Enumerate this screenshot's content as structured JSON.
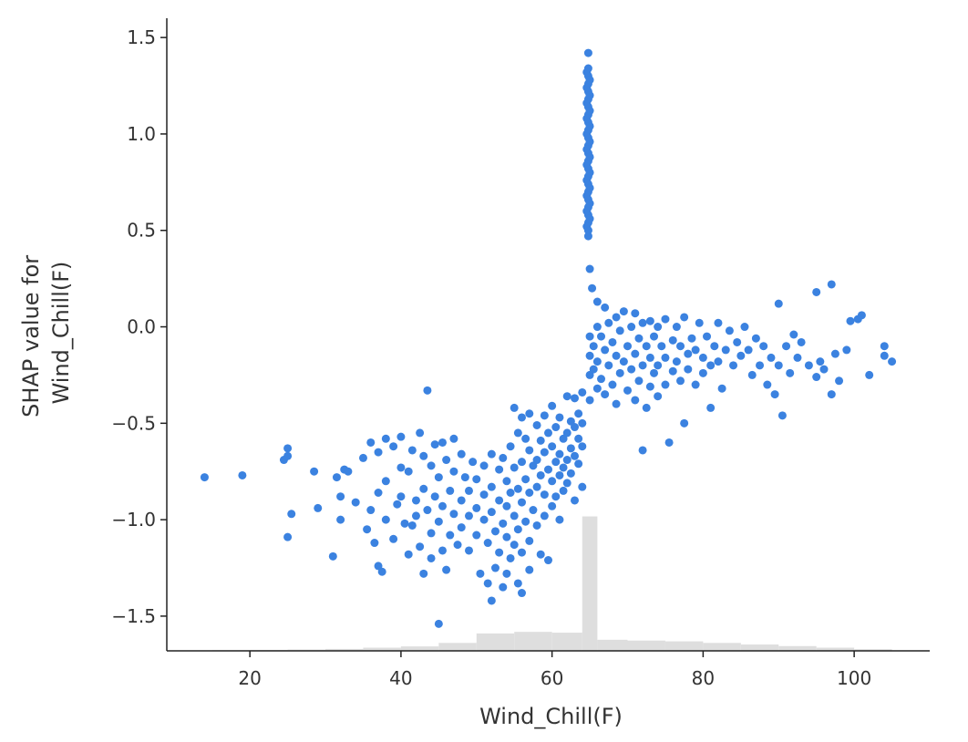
{
  "chart_data": {
    "type": "scatter",
    "xlabel": "Wind_Chill(F)",
    "ylabel": [
      "SHAP value for",
      "Wind_Chill(F)"
    ],
    "xlim": [
      9,
      110
    ],
    "ylim": [
      -1.68,
      1.6
    ],
    "xticks": [
      20,
      40,
      60,
      80,
      100
    ],
    "xtick_labels": [
      "20",
      "40",
      "60",
      "80",
      "100"
    ],
    "yticks": [
      1.5,
      1.0,
      0.5,
      0.0,
      -0.5,
      -1.0,
      -1.5
    ],
    "ytick_labels": [
      "1.5",
      "1.0",
      "0.5",
      "0.0",
      "−0.5",
      "−1.0",
      "−1.5"
    ],
    "grid": false,
    "legend": "none",
    "colors": {
      "points": "#3b82e0",
      "histogram": "#dedede",
      "axes": "#222222"
    },
    "histogram": {
      "bin_edges": [
        10,
        15,
        20,
        25,
        30,
        35,
        40,
        45,
        50,
        55,
        60,
        64,
        66,
        70,
        75,
        80,
        85,
        90,
        95,
        100,
        105
      ],
      "heights": [
        0.002,
        0.004,
        0.006,
        0.008,
        0.012,
        0.02,
        0.028,
        0.05,
        0.11,
        0.12,
        0.115,
        0.85,
        0.07,
        0.065,
        0.06,
        0.05,
        0.04,
        0.03,
        0.02,
        0.01
      ]
    },
    "points": [
      [
        14,
        -0.78
      ],
      [
        19,
        -0.77
      ],
      [
        24.5,
        -0.69
      ],
      [
        25,
        -0.63
      ],
      [
        25,
        -0.67
      ],
      [
        25,
        -1.09
      ],
      [
        25.5,
        -0.97
      ],
      [
        28.5,
        -0.75
      ],
      [
        29,
        -0.94
      ],
      [
        31,
        -1.19
      ],
      [
        31.5,
        -0.78
      ],
      [
        32,
        -0.88
      ],
      [
        32,
        -1.0
      ],
      [
        32.5,
        -0.74
      ],
      [
        33,
        -0.75
      ],
      [
        34,
        -0.91
      ],
      [
        35,
        -0.68
      ],
      [
        35.5,
        -1.05
      ],
      [
        36,
        -0.6
      ],
      [
        36,
        -0.95
      ],
      [
        36.5,
        -1.12
      ],
      [
        37,
        -0.65
      ],
      [
        37,
        -1.24
      ],
      [
        37,
        -0.86
      ],
      [
        37.5,
        -1.27
      ],
      [
        38,
        -0.58
      ],
      [
        38,
        -0.8
      ],
      [
        38,
        -1.0
      ],
      [
        39,
        -0.62
      ],
      [
        39,
        -1.1
      ],
      [
        39.5,
        -0.92
      ],
      [
        40,
        -0.57
      ],
      [
        40,
        -0.73
      ],
      [
        40,
        -0.88
      ],
      [
        40.5,
        -1.02
      ],
      [
        41,
        -0.75
      ],
      [
        41,
        -1.18
      ],
      [
        41.5,
        -0.64
      ],
      [
        41.5,
        -1.03
      ],
      [
        42,
        -0.9
      ],
      [
        42,
        -0.98
      ],
      [
        42.5,
        -0.55
      ],
      [
        42.5,
        -1.14
      ],
      [
        43,
        -0.67
      ],
      [
        43,
        -0.84
      ],
      [
        43,
        -1.28
      ],
      [
        43.5,
        -0.33
      ],
      [
        43.5,
        -0.95
      ],
      [
        44,
        -0.72
      ],
      [
        44,
        -1.07
      ],
      [
        44,
        -1.2
      ],
      [
        44.5,
        -0.61
      ],
      [
        44.5,
        -0.88
      ],
      [
        45,
        -0.78
      ],
      [
        45,
        -1.01
      ],
      [
        45,
        -1.54
      ],
      [
        45.5,
        -0.6
      ],
      [
        45.5,
        -0.93
      ],
      [
        45.5,
        -1.16
      ],
      [
        46,
        -0.69
      ],
      [
        46,
        -1.26
      ],
      [
        46.5,
        -0.85
      ],
      [
        46.5,
        -1.08
      ],
      [
        47,
        -0.58
      ],
      [
        47,
        -0.75
      ],
      [
        47,
        -0.97
      ],
      [
        47.5,
        -1.13
      ],
      [
        48,
        -0.66
      ],
      [
        48,
        -0.9
      ],
      [
        48,
        -1.04
      ],
      [
        48.5,
        -0.78
      ],
      [
        49,
        -0.85
      ],
      [
        49,
        -0.98
      ],
      [
        49,
        -1.16
      ],
      [
        49.5,
        -0.7
      ],
      [
        50,
        -0.79
      ],
      [
        50,
        -0.94
      ],
      [
        50,
        -1.08
      ],
      [
        50.5,
        -1.28
      ],
      [
        51,
        -0.72
      ],
      [
        51,
        -0.87
      ],
      [
        51,
        -1.0
      ],
      [
        51.5,
        -1.12
      ],
      [
        51.5,
        -1.33
      ],
      [
        52,
        -0.66
      ],
      [
        52,
        -0.83
      ],
      [
        52,
        -0.96
      ],
      [
        52,
        -1.42
      ],
      [
        52.5,
        -1.06
      ],
      [
        52.5,
        -1.25
      ],
      [
        53,
        -0.74
      ],
      [
        53,
        -0.9
      ],
      [
        53,
        -1.17
      ],
      [
        53.5,
        -0.68
      ],
      [
        53.5,
        -1.02
      ],
      [
        53.5,
        -1.35
      ],
      [
        54,
        -0.8
      ],
      [
        54,
        -0.93
      ],
      [
        54,
        -1.09
      ],
      [
        54,
        -1.28
      ],
      [
        54.5,
        -0.62
      ],
      [
        54.5,
        -0.86
      ],
      [
        54.5,
        -1.2
      ],
      [
        55,
        -0.42
      ],
      [
        55,
        -0.73
      ],
      [
        55,
        -0.98
      ],
      [
        55,
        -1.13
      ],
      [
        55.5,
        -0.55
      ],
      [
        55.5,
        -0.84
      ],
      [
        55.5,
        -1.05
      ],
      [
        55.5,
        -1.33
      ],
      [
        56,
        -0.47
      ],
      [
        56,
        -0.7
      ],
      [
        56,
        -0.91
      ],
      [
        56,
        -1.17
      ],
      [
        56,
        -1.38
      ],
      [
        56.5,
        -0.58
      ],
      [
        56.5,
        -0.79
      ],
      [
        56.5,
        -1.01
      ],
      [
        57,
        -0.45
      ],
      [
        57,
        -0.64
      ],
      [
        57,
        -0.86
      ],
      [
        57,
        -1.11
      ],
      [
        57,
        -1.26
      ],
      [
        57.5,
        -0.72
      ],
      [
        57.5,
        -0.95
      ],
      [
        58,
        -0.51
      ],
      [
        58,
        -0.69
      ],
      [
        58,
        -0.83
      ],
      [
        58,
        -1.03
      ],
      [
        58.5,
        -0.59
      ],
      [
        58.5,
        -0.77
      ],
      [
        58.5,
        -1.18
      ],
      [
        59,
        -0.46
      ],
      [
        59,
        -0.65
      ],
      [
        59,
        -0.87
      ],
      [
        59,
        -0.98
      ],
      [
        59.5,
        -0.55
      ],
      [
        59.5,
        -0.74
      ],
      [
        59.5,
        -1.21
      ],
      [
        60,
        -0.41
      ],
      [
        60,
        -0.62
      ],
      [
        60,
        -0.8
      ],
      [
        60,
        -0.93
      ],
      [
        60.5,
        -0.52
      ],
      [
        60.5,
        -0.7
      ],
      [
        60.5,
        -0.88
      ],
      [
        61,
        -0.47
      ],
      [
        61,
        -0.66
      ],
      [
        61,
        -0.77
      ],
      [
        61,
        -1.0
      ],
      [
        61.5,
        -0.58
      ],
      [
        61.5,
        -0.73
      ],
      [
        61.5,
        -0.85
      ],
      [
        62,
        -0.36
      ],
      [
        62,
        -0.55
      ],
      [
        62,
        -0.69
      ],
      [
        62,
        -0.81
      ],
      [
        62.5,
        -0.49
      ],
      [
        62.5,
        -0.63
      ],
      [
        62.5,
        -0.76
      ],
      [
        63,
        -0.37
      ],
      [
        63,
        -0.52
      ],
      [
        63,
        -0.67
      ],
      [
        63,
        -0.9
      ],
      [
        63.5,
        -0.45
      ],
      [
        63.5,
        -0.58
      ],
      [
        63.5,
        -0.71
      ],
      [
        64,
        -0.34
      ],
      [
        64,
        -0.5
      ],
      [
        64,
        -0.62
      ],
      [
        64,
        -0.83
      ],
      [
        64.8,
        1.42
      ],
      [
        64.8,
        1.34
      ],
      [
        64.8,
        1.3
      ],
      [
        64.8,
        1.26
      ],
      [
        64.8,
        1.22
      ],
      [
        64.8,
        1.18
      ],
      [
        64.8,
        1.14
      ],
      [
        64.8,
        1.1
      ],
      [
        64.8,
        1.06
      ],
      [
        64.8,
        1.02
      ],
      [
        64.8,
        0.98
      ],
      [
        64.8,
        0.94
      ],
      [
        64.8,
        0.9
      ],
      [
        64.8,
        0.86
      ],
      [
        64.8,
        0.82
      ],
      [
        64.8,
        0.78
      ],
      [
        64.8,
        0.74
      ],
      [
        64.8,
        0.7
      ],
      [
        64.8,
        0.66
      ],
      [
        64.8,
        0.62
      ],
      [
        64.8,
        0.58
      ],
      [
        64.8,
        0.54
      ],
      [
        64.8,
        0.5
      ],
      [
        64.8,
        0.47
      ],
      [
        64.6,
        1.32
      ],
      [
        64.6,
        1.24
      ],
      [
        64.6,
        1.16
      ],
      [
        64.6,
        1.08
      ],
      [
        64.6,
        1.0
      ],
      [
        64.6,
        0.92
      ],
      [
        64.6,
        0.84
      ],
      [
        64.6,
        0.76
      ],
      [
        64.6,
        0.68
      ],
      [
        64.6,
        0.6
      ],
      [
        64.6,
        0.52
      ],
      [
        65,
        1.28
      ],
      [
        65,
        1.2
      ],
      [
        65,
        1.12
      ],
      [
        65,
        1.04
      ],
      [
        65,
        0.96
      ],
      [
        65,
        0.88
      ],
      [
        65,
        0.8
      ],
      [
        65,
        0.72
      ],
      [
        65,
        0.64
      ],
      [
        65,
        0.56
      ],
      [
        65,
        0.3
      ],
      [
        65.3,
        0.2
      ],
      [
        65,
        -0.05
      ],
      [
        65,
        -0.15
      ],
      [
        65,
        -0.25
      ],
      [
        65,
        -0.38
      ],
      [
        65.5,
        -0.1
      ],
      [
        65.5,
        -0.22
      ],
      [
        66,
        0.13
      ],
      [
        66,
        0.0
      ],
      [
        66,
        -0.18
      ],
      [
        66,
        -0.32
      ],
      [
        66.5,
        -0.05
      ],
      [
        66.5,
        -0.27
      ],
      [
        67,
        0.1
      ],
      [
        67,
        -0.12
      ],
      [
        67,
        -0.35
      ],
      [
        67.5,
        0.02
      ],
      [
        67.5,
        -0.2
      ],
      [
        68,
        -0.08
      ],
      [
        68,
        -0.3
      ],
      [
        68.5,
        0.05
      ],
      [
        68.5,
        -0.15
      ],
      [
        68.5,
        -0.4
      ],
      [
        69,
        -0.02
      ],
      [
        69,
        -0.24
      ],
      [
        69.5,
        0.08
      ],
      [
        69.5,
        -0.18
      ],
      [
        70,
        -0.1
      ],
      [
        70,
        -0.33
      ],
      [
        70.5,
        0.0
      ],
      [
        70.5,
        -0.22
      ],
      [
        71,
        0.07
      ],
      [
        71,
        -0.14
      ],
      [
        71,
        -0.38
      ],
      [
        71.5,
        -0.06
      ],
      [
        71.5,
        -0.28
      ],
      [
        72,
        0.02
      ],
      [
        72,
        -0.2
      ],
      [
        72,
        -0.64
      ],
      [
        72.5,
        -0.1
      ],
      [
        72.5,
        -0.42
      ],
      [
        73,
        0.03
      ],
      [
        73,
        -0.16
      ],
      [
        73,
        -0.31
      ],
      [
        73.5,
        -0.05
      ],
      [
        73.5,
        -0.24
      ],
      [
        74,
        0.0
      ],
      [
        74,
        -0.2
      ],
      [
        74,
        -0.36
      ],
      [
        74.5,
        -0.1
      ],
      [
        75,
        0.04
      ],
      [
        75,
        -0.16
      ],
      [
        75,
        -0.3
      ],
      [
        75.5,
        -0.6
      ],
      [
        76,
        -0.07
      ],
      [
        76,
        -0.23
      ],
      [
        76.5,
        0.0
      ],
      [
        76.5,
        -0.18
      ],
      [
        77,
        -0.1
      ],
      [
        77,
        -0.28
      ],
      [
        77.5,
        0.05
      ],
      [
        77.5,
        -0.5
      ],
      [
        78,
        -0.14
      ],
      [
        78,
        -0.22
      ],
      [
        78.5,
        -0.06
      ],
      [
        79,
        -0.12
      ],
      [
        79,
        -0.3
      ],
      [
        79.5,
        0.02
      ],
      [
        80,
        -0.16
      ],
      [
        80,
        -0.24
      ],
      [
        80.5,
        -0.05
      ],
      [
        81,
        -0.2
      ],
      [
        81,
        -0.42
      ],
      [
        81.5,
        -0.1
      ],
      [
        82,
        0.02
      ],
      [
        82,
        -0.18
      ],
      [
        82.5,
        -0.32
      ],
      [
        83,
        -0.12
      ],
      [
        83.5,
        -0.02
      ],
      [
        84,
        -0.2
      ],
      [
        84.5,
        -0.08
      ],
      [
        85,
        -0.15
      ],
      [
        85.5,
        0.0
      ],
      [
        86,
        -0.12
      ],
      [
        86.5,
        -0.25
      ],
      [
        87,
        -0.06
      ],
      [
        87.5,
        -0.2
      ],
      [
        88,
        -0.1
      ],
      [
        88.5,
        -0.3
      ],
      [
        89,
        -0.16
      ],
      [
        89.5,
        -0.35
      ],
      [
        90,
        0.12
      ],
      [
        90,
        -0.2
      ],
      [
        90.5,
        -0.46
      ],
      [
        91,
        -0.1
      ],
      [
        91.5,
        -0.24
      ],
      [
        92,
        -0.04
      ],
      [
        92.5,
        -0.16
      ],
      [
        93,
        -0.08
      ],
      [
        94,
        -0.2
      ],
      [
        95,
        0.18
      ],
      [
        95,
        -0.26
      ],
      [
        95.5,
        -0.18
      ],
      [
        96,
        -0.22
      ],
      [
        97,
        0.22
      ],
      [
        97,
        -0.35
      ],
      [
        97.5,
        -0.14
      ],
      [
        98,
        -0.28
      ],
      [
        99,
        -0.12
      ],
      [
        99.5,
        0.03
      ],
      [
        100.5,
        0.04
      ],
      [
        101,
        0.06
      ],
      [
        102,
        -0.25
      ],
      [
        104,
        -0.1
      ],
      [
        104,
        -0.15
      ],
      [
        105,
        -0.18
      ]
    ]
  }
}
